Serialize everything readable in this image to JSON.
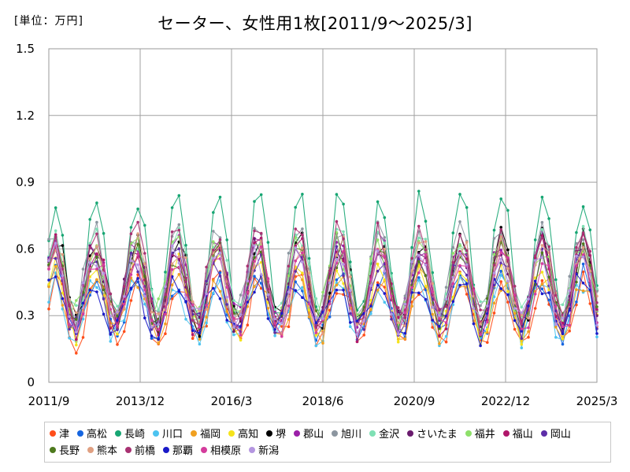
{
  "header": {
    "unit": "[単位：万円]",
    "title": "セーター、女性用1枚[2011/9～2025/3]"
  },
  "chart_data": {
    "type": "line",
    "title": "セーター、女性用1枚[2011/9～2025/3]",
    "unit_label": "[単位：万円]",
    "x_start": 2011.667,
    "x_end": 2025.167,
    "x_ticks": [
      {
        "label": "2011/9",
        "value": 2011.667
      },
      {
        "label": "2013/12",
        "value": 2013.917
      },
      {
        "label": "2016/3",
        "value": 2016.167
      },
      {
        "label": "2018/6",
        "value": 2018.417
      },
      {
        "label": "2020/9",
        "value": 2020.667
      },
      {
        "label": "2022/12",
        "value": 2022.917
      },
      {
        "label": "2025/3",
        "value": 2025.167
      }
    ],
    "ylim": [
      0,
      1.5
    ],
    "y_ticks": [
      {
        "label": "0",
        "value": 0
      },
      {
        "label": "0.3",
        "value": 0.3
      },
      {
        "label": "0.6",
        "value": 0.6
      },
      {
        "label": "0.9",
        "value": 0.9
      },
      {
        "label": "1.2",
        "value": 1.2
      },
      {
        "label": "1.5",
        "value": 1.5
      }
    ],
    "grid": true,
    "legend_position": "bottom",
    "series": [
      {
        "name": "津",
        "color": "#ff4e1a",
        "base": 0.32,
        "amp": 0.13,
        "phase": 0.3
      },
      {
        "name": "高松",
        "color": "#1565e0",
        "base": 0.34,
        "amp": 0.14,
        "phase": 1.1
      },
      {
        "name": "長崎",
        "color": "#17a673",
        "base": 0.55,
        "amp": 0.28,
        "phase": 0.6
      },
      {
        "name": "川口",
        "color": "#4cc3f0",
        "base": 0.33,
        "amp": 0.12,
        "phase": 2.0
      },
      {
        "name": "福岡",
        "color": "#f0a020",
        "base": 0.34,
        "amp": 0.13,
        "phase": 0.9
      },
      {
        "name": "高知",
        "color": "#f5e31a",
        "base": 0.38,
        "amp": 0.16,
        "phase": 1.7
      },
      {
        "name": "堺",
        "color": "#000000",
        "base": 0.45,
        "amp": 0.2,
        "phase": 0.2
      },
      {
        "name": "郡山",
        "color": "#9b1fa8",
        "base": 0.45,
        "amp": 0.18,
        "phase": 1.4
      },
      {
        "name": "旭川",
        "color": "#8c96a0",
        "base": 0.5,
        "amp": 0.2,
        "phase": 2.4
      },
      {
        "name": "金沢",
        "color": "#7fe0b4",
        "base": 0.48,
        "amp": 0.18,
        "phase": 0.5
      },
      {
        "name": "さいたま",
        "color": "#6a1b6e",
        "base": 0.44,
        "amp": 0.18,
        "phase": 1.9
      },
      {
        "name": "福井",
        "color": "#8ee06a",
        "base": 0.46,
        "amp": 0.16,
        "phase": 2.7
      },
      {
        "name": "福山",
        "color": "#b0166a",
        "base": 0.42,
        "amp": 0.2,
        "phase": 0.8
      },
      {
        "name": "岡山",
        "color": "#5d2ea8",
        "base": 0.4,
        "amp": 0.16,
        "phase": 2.2
      },
      {
        "name": "長野",
        "color": "#4e7a1e",
        "base": 0.42,
        "amp": 0.16,
        "phase": 1.2
      },
      {
        "name": "熊本",
        "color": "#e0a082",
        "base": 0.44,
        "amp": 0.18,
        "phase": 0.1
      },
      {
        "name": "前橋",
        "color": "#a83272",
        "base": 0.48,
        "amp": 0.2,
        "phase": 1.6
      },
      {
        "name": "那覇",
        "color": "#1a1ac8",
        "base": 0.34,
        "amp": 0.12,
        "phase": 2.9
      },
      {
        "name": "相模原",
        "color": "#d43c9c",
        "base": 0.4,
        "amp": 0.16,
        "phase": 0.4
      },
      {
        "name": "新潟",
        "color": "#b496e0",
        "base": 0.42,
        "amp": 0.16,
        "phase": 2.5
      }
    ]
  }
}
